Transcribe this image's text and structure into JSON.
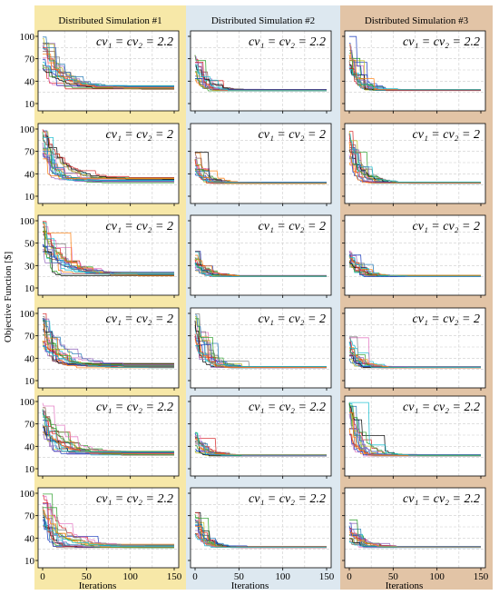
{
  "figure": {
    "ylabel": "Objective Function [$]",
    "xlabel": "Iterations",
    "columns": [
      {
        "title": "Distributed Simulation #1",
        "bg": "#f7e8a8"
      },
      {
        "title": "Distributed Simulation #2",
        "bg": "#dde8f0"
      },
      {
        "title": "Distributed Simulation #3",
        "bg": "#e2c4a6"
      }
    ],
    "rows": [
      {
        "yticks": [
          "10",
          "40",
          "70",
          "100"
        ]
      },
      {
        "yticks": [
          "10",
          "40",
          "70",
          "100"
        ]
      },
      {
        "yticks": [
          "10",
          "30",
          "50",
          "100"
        ]
      },
      {
        "yticks": [
          "10",
          "40",
          "70",
          "100"
        ]
      },
      {
        "yticks": [
          "10",
          "40",
          "70",
          "100"
        ]
      },
      {
        "yticks": [
          "10",
          "40",
          "70",
          "100"
        ]
      }
    ],
    "xticks": [
      "0",
      "50",
      "100",
      "150"
    ]
  },
  "chart_data": {
    "type": "line",
    "xlabel": "Iterations",
    "ylabel": "Objective Function [$]",
    "xlim": [
      0,
      150
    ],
    "x_ticks": [
      0,
      50,
      100,
      150
    ],
    "grid": true,
    "series_colors": [
      "#1f3fbf",
      "#d62728",
      "#2ca02c",
      "#9467bd",
      "#ff7f0e",
      "#17becf",
      "#8c564b",
      "#e377c2",
      "#bcbd22",
      "#7f7f7f",
      "#000000",
      "#1f77b4"
    ],
    "panels": [
      {
        "row": 0,
        "col": 0,
        "annotation": "cv₁ = cv₂ = 2.2",
        "ytick_labels": [
          "10",
          "40",
          "70",
          "100"
        ],
        "series_count": 30,
        "start_value": 100,
        "plateau_range": [
          29,
          34
        ]
      },
      {
        "row": 0,
        "col": 1,
        "annotation": "cv₁ = cv₂ = 2.2",
        "ytick_labels": [
          "10",
          "40",
          "70",
          "100"
        ],
        "series_count": 30,
        "start_value": 75,
        "plateau_range": [
          27,
          29
        ]
      },
      {
        "row": 0,
        "col": 2,
        "annotation": "cv₁ = cv₂ = 2.2",
        "ytick_labels": [
          "10",
          "40",
          "70",
          "100"
        ],
        "series_count": 30,
        "start_value": 100,
        "plateau_range": [
          27,
          29
        ]
      },
      {
        "row": 1,
        "col": 0,
        "annotation": "cv₁ = cv₂ = 2",
        "ytick_labels": [
          "10",
          "40",
          "70",
          "100"
        ],
        "series_count": 30,
        "start_value": 100,
        "plateau_range": [
          28,
          35
        ]
      },
      {
        "row": 1,
        "col": 1,
        "annotation": "cv₁ = cv₂ = 2",
        "ytick_labels": [
          "10",
          "40",
          "70",
          "100"
        ],
        "series_count": 30,
        "start_value": 70,
        "plateau_range": [
          27,
          29
        ]
      },
      {
        "row": 1,
        "col": 2,
        "annotation": "cv₁ = cv₂ = 2",
        "ytick_labels": [
          "10",
          "40",
          "70",
          "100"
        ],
        "series_count": 30,
        "start_value": 100,
        "plateau_range": [
          27,
          29
        ]
      },
      {
        "row": 2,
        "col": 0,
        "annotation": "cv₁ = cv₂ = 2",
        "ytick_labels": [
          "10",
          "30",
          "50",
          "100"
        ],
        "series_count": 30,
        "start_value": 100,
        "plateau_range": [
          26,
          31
        ]
      },
      {
        "row": 2,
        "col": 1,
        "annotation": "cv₁ = cv₂ = 2",
        "ytick_labels": [
          "10",
          "30",
          "50",
          "100"
        ],
        "series_count": 30,
        "start_value": 60,
        "plateau_range": [
          25,
          27
        ]
      },
      {
        "row": 2,
        "col": 2,
        "annotation": "cv₁ = cv₂ = 2",
        "ytick_labels": [
          "10",
          "30",
          "50",
          "100"
        ],
        "series_count": 30,
        "start_value": 60,
        "plateau_range": [
          25,
          27
        ]
      },
      {
        "row": 3,
        "col": 0,
        "annotation": "cv₁ = cv₂ = 2",
        "ytick_labels": [
          "10",
          "40",
          "70",
          "100"
        ],
        "series_count": 30,
        "start_value": 100,
        "plateau_range": [
          27,
          33
        ]
      },
      {
        "row": 3,
        "col": 1,
        "annotation": "cv₁ = cv₂ = 2",
        "ytick_labels": [
          "10",
          "40",
          "70",
          "100"
        ],
        "series_count": 30,
        "start_value": 100,
        "plateau_range": [
          27,
          29
        ]
      },
      {
        "row": 3,
        "col": 2,
        "annotation": "cv₁ = cv₂ = 2",
        "ytick_labels": [
          "10",
          "40",
          "70",
          "100"
        ],
        "series_count": 30,
        "start_value": 70,
        "plateau_range": [
          27,
          29
        ]
      },
      {
        "row": 4,
        "col": 0,
        "annotation": "cv₁ = cv₂ = 2.2",
        "ytick_labels": [
          "10",
          "40",
          "70",
          "100"
        ],
        "series_count": 30,
        "start_value": 100,
        "plateau_range": [
          28,
          34
        ]
      },
      {
        "row": 4,
        "col": 1,
        "annotation": "cv₁ = cv₂ = 2.2",
        "ytick_labels": [
          "10",
          "40",
          "70",
          "100"
        ],
        "series_count": 30,
        "start_value": 60,
        "plateau_range": [
          27,
          29
        ]
      },
      {
        "row": 4,
        "col": 2,
        "annotation": "cv₁ = cv₂ = 2.2",
        "ytick_labels": [
          "10",
          "40",
          "70",
          "100"
        ],
        "series_count": 30,
        "start_value": 100,
        "plateau_range": [
          27,
          29
        ]
      },
      {
        "row": 5,
        "col": 0,
        "annotation": "cv₁ = cv₂ = 2.2",
        "ytick_labels": [
          "10",
          "40",
          "70",
          "100"
        ],
        "series_count": 30,
        "start_value": 100,
        "plateau_range": [
          27,
          32
        ]
      },
      {
        "row": 5,
        "col": 1,
        "annotation": "cv₁ = cv₂ = 2.2",
        "ytick_labels": [
          "10",
          "40",
          "70",
          "100"
        ],
        "series_count": 30,
        "start_value": 75,
        "plateau_range": [
          27,
          29
        ]
      },
      {
        "row": 5,
        "col": 2,
        "annotation": "cv₁ = cv₂ = 2.2",
        "ytick_labels": [
          "10",
          "40",
          "70",
          "100"
        ],
        "series_count": 30,
        "start_value": 65,
        "plateau_range": [
          27,
          29
        ]
      }
    ]
  }
}
